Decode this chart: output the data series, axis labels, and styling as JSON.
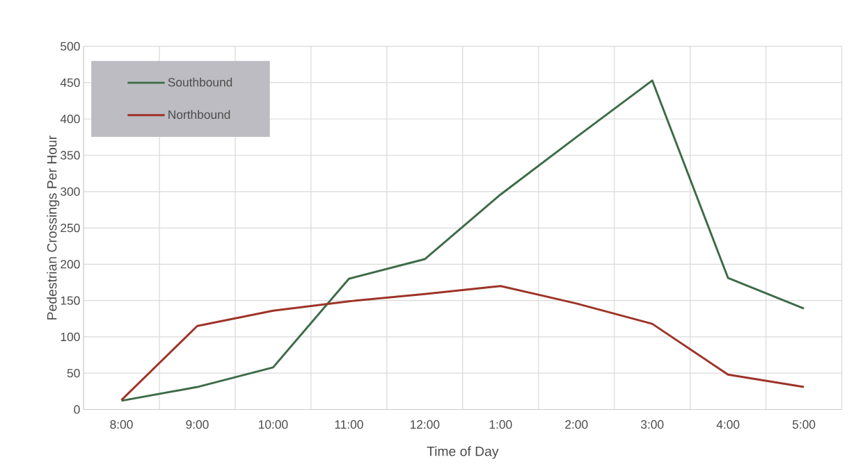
{
  "chart_data": {
    "type": "line",
    "xlabel": "Time of Day",
    "ylabel": "Pedestrian Crossings Per Hour",
    "categories": [
      "8:00",
      "9:00",
      "10:00",
      "11:00",
      "12:00",
      "1:00",
      "2:00",
      "3:00",
      "4:00",
      "5:00"
    ],
    "series": [
      {
        "name": "Southbound",
        "color": "#3d6b47",
        "values": [
          12,
          31,
          58,
          180,
          207,
          296,
          375,
          453,
          181,
          139
        ]
      },
      {
        "name": "Northbound",
        "color": "#9e3328",
        "values": [
          13,
          115,
          136,
          149,
          159,
          170,
          146,
          118,
          48,
          31
        ]
      }
    ],
    "ylim": [
      0,
      500
    ],
    "yticks": [
      0,
      50,
      100,
      150,
      200,
      250,
      300,
      350,
      400,
      450,
      500
    ],
    "grid": true,
    "legend": "top left",
    "marker": "none",
    "line_style": "solid"
  }
}
